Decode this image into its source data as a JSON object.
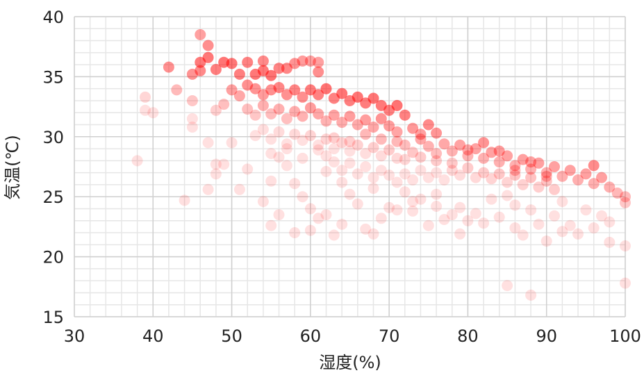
{
  "chart_data": {
    "type": "scatter",
    "xlabel": "湿度(%)",
    "ylabel": "気温(℃)",
    "xlim": [
      30,
      100
    ],
    "ylim": [
      15,
      40
    ],
    "x_ticks": [
      30,
      40,
      50,
      60,
      70,
      80,
      90,
      100
    ],
    "y_ticks": [
      15,
      20,
      25,
      30,
      35,
      40
    ],
    "grid": true,
    "legend": "none",
    "series_color": "#ff0000",
    "points": [
      [
        46,
        38.5
      ],
      [
        47,
        37.6
      ],
      [
        47,
        36.6
      ],
      [
        46,
        36.2
      ],
      [
        46,
        35.5
      ],
      [
        48,
        35.6
      ],
      [
        49,
        36.2
      ],
      [
        50,
        36.1
      ],
      [
        42,
        35.8
      ],
      [
        45,
        35.2
      ],
      [
        43,
        33.9
      ],
      [
        39,
        33.3
      ],
      [
        39,
        32.2
      ],
      [
        40,
        32.0
      ],
      [
        45,
        33.0
      ],
      [
        48,
        32.2
      ],
      [
        49,
        32.7
      ],
      [
        45,
        31.5
      ],
      [
        48,
        27.7
      ],
      [
        48,
        26.9
      ],
      [
        49,
        27.7
      ],
      [
        51,
        35.2
      ],
      [
        52,
        36.2
      ],
      [
        53,
        35.2
      ],
      [
        54,
        36.3
      ],
      [
        54,
        35.5
      ],
      [
        55,
        35.1
      ],
      [
        56,
        35.7
      ],
      [
        57,
        35.7
      ],
      [
        58,
        36.1
      ],
      [
        59,
        36.3
      ],
      [
        60,
        36.3
      ],
      [
        61,
        36.2
      ],
      [
        61,
        35.4
      ],
      [
        50,
        33.9
      ],
      [
        51,
        33.4
      ],
      [
        52,
        34.3
      ],
      [
        53,
        34.0
      ],
      [
        54,
        33.5
      ],
      [
        55,
        33.9
      ],
      [
        56,
        34.1
      ],
      [
        57,
        33.5
      ],
      [
        58,
        33.9
      ],
      [
        59,
        33.3
      ],
      [
        60,
        33.9
      ],
      [
        61,
        33.5
      ],
      [
        62,
        34.0
      ],
      [
        63,
        33.2
      ],
      [
        64,
        33.6
      ],
      [
        65,
        33.0
      ],
      [
        66,
        33.3
      ],
      [
        67,
        32.8
      ],
      [
        68,
        33.2
      ],
      [
        69,
        32.6
      ],
      [
        70,
        32.2
      ],
      [
        71,
        32.6
      ],
      [
        52,
        32.3
      ],
      [
        53,
        31.8
      ],
      [
        54,
        32.6
      ],
      [
        55,
        31.9
      ],
      [
        56,
        32.3
      ],
      [
        57,
        31.5
      ],
      [
        58,
        32.1
      ],
      [
        59,
        31.7
      ],
      [
        60,
        32.4
      ],
      [
        61,
        31.9
      ],
      [
        62,
        31.3
      ],
      [
        63,
        31.8
      ],
      [
        64,
        31.2
      ],
      [
        65,
        31.7
      ],
      [
        66,
        31.0
      ],
      [
        67,
        31.4
      ],
      [
        68,
        30.8
      ],
      [
        69,
        31.5
      ],
      [
        70,
        30.9
      ],
      [
        71,
        30.4
      ],
      [
        72,
        31.8
      ],
      [
        73,
        30.7
      ],
      [
        74,
        30.2
      ],
      [
        75,
        31.0
      ],
      [
        76,
        30.3
      ],
      [
        54,
        30.6
      ],
      [
        55,
        29.8
      ],
      [
        56,
        30.4
      ],
      [
        57,
        29.4
      ],
      [
        58,
        30.2
      ],
      [
        59,
        29.7
      ],
      [
        60,
        30.1
      ],
      [
        61,
        29.3
      ],
      [
        62,
        29.8
      ],
      [
        63,
        29.0
      ],
      [
        64,
        29.5
      ],
      [
        65,
        28.8
      ],
      [
        66,
        29.3
      ],
      [
        67,
        28.6
      ],
      [
        68,
        29.1
      ],
      [
        69,
        28.4
      ],
      [
        70,
        28.9
      ],
      [
        71,
        28.2
      ],
      [
        72,
        29.3
      ],
      [
        73,
        28.7
      ],
      [
        74,
        29.8
      ],
      [
        75,
        29.2
      ],
      [
        76,
        28.6
      ],
      [
        77,
        29.4
      ],
      [
        78,
        28.8
      ],
      [
        79,
        29.3
      ],
      [
        80,
        28.4
      ],
      [
        81,
        29.0
      ],
      [
        82,
        28.2
      ],
      [
        83,
        28.7
      ],
      [
        84,
        27.9
      ],
      [
        85,
        28.4
      ],
      [
        86,
        27.6
      ],
      [
        87,
        28.1
      ],
      [
        88,
        27.3
      ],
      [
        89,
        27.8
      ],
      [
        90,
        27.0
      ],
      [
        91,
        27.5
      ],
      [
        92,
        26.7
      ],
      [
        93,
        27.2
      ],
      [
        94,
        26.4
      ],
      [
        95,
        26.9
      ],
      [
        96,
        27.6
      ],
      [
        96,
        26.1
      ],
      [
        97,
        26.6
      ],
      [
        98,
        25.8
      ],
      [
        99,
        25.3
      ],
      [
        100,
        25.0
      ],
      [
        100,
        24.5
      ],
      [
        62,
        28.4
      ],
      [
        63,
        27.9
      ],
      [
        64,
        27.2
      ],
      [
        65,
        27.8
      ],
      [
        66,
        26.9
      ],
      [
        67,
        27.5
      ],
      [
        68,
        26.6
      ],
      [
        69,
        27.2
      ],
      [
        70,
        26.8
      ],
      [
        71,
        26.2
      ],
      [
        72,
        26.9
      ],
      [
        73,
        26.4
      ],
      [
        74,
        27.2
      ],
      [
        75,
        26.6
      ],
      [
        76,
        27.0
      ],
      [
        77,
        26.4
      ],
      [
        78,
        27.2
      ],
      [
        79,
        26.8
      ],
      [
        80,
        27.4
      ],
      [
        81,
        26.6
      ],
      [
        82,
        27.0
      ],
      [
        83,
        26.5
      ],
      [
        84,
        26.9
      ],
      [
        85,
        26.2
      ],
      [
        86,
        26.8
      ],
      [
        87,
        26.0
      ],
      [
        88,
        26.6
      ],
      [
        89,
        25.8
      ],
      [
        90,
        26.3
      ],
      [
        91,
        25.6
      ],
      [
        62,
        27.1
      ],
      [
        55,
        26.3
      ],
      [
        64,
        26.2
      ],
      [
        73,
        24.6
      ],
      [
        73,
        23.8
      ],
      [
        76,
        24.2
      ],
      [
        78,
        23.5
      ],
      [
        79,
        24.1
      ],
      [
        80,
        23.0
      ],
      [
        79,
        21.9
      ],
      [
        75,
        22.6
      ],
      [
        71,
        23.9
      ],
      [
        74,
        24.8
      ],
      [
        76,
        25.2
      ],
      [
        83,
        24.8
      ],
      [
        86,
        24.3
      ],
      [
        88,
        23.9
      ],
      [
        85,
        25.1
      ],
      [
        92,
        24.6
      ],
      [
        95,
        23.9
      ],
      [
        97,
        23.4
      ],
      [
        98,
        22.9
      ],
      [
        98,
        21.2
      ],
      [
        100,
        20.9
      ],
      [
        100,
        17.8
      ],
      [
        88,
        16.8
      ],
      [
        85,
        17.6
      ],
      [
        92,
        22.1
      ],
      [
        90,
        21.3
      ],
      [
        87,
        21.8
      ],
      [
        60,
        22.2
      ],
      [
        58,
        22.0
      ],
      [
        63,
        21.8
      ],
      [
        62,
        23.5
      ],
      [
        64,
        22.7
      ],
      [
        66,
        24.4
      ],
      [
        67,
        22.3
      ],
      [
        68,
        21.9
      ],
      [
        69,
        23.2
      ],
      [
        65,
        25.2
      ],
      [
        38,
        28.0
      ],
      [
        44,
        24.7
      ],
      [
        47,
        25.6
      ],
      [
        51,
        25.6
      ],
      [
        52,
        27.3
      ],
      [
        50,
        29.5
      ],
      [
        47,
        29.5
      ],
      [
        45,
        30.8
      ],
      [
        56,
        28.3
      ],
      [
        57,
        27.6
      ],
      [
        58,
        26.1
      ],
      [
        59,
        25.0
      ],
      [
        54,
        24.6
      ],
      [
        56,
        23.5
      ],
      [
        55,
        22.6
      ],
      [
        60,
        24.0
      ],
      [
        61,
        23.2
      ],
      [
        70,
        24.1
      ],
      [
        72,
        25.4
      ],
      [
        68,
        25.7
      ],
      [
        77,
        23.1
      ],
      [
        81,
        23.6
      ],
      [
        82,
        22.8
      ],
      [
        84,
        23.3
      ],
      [
        86,
        22.4
      ],
      [
        89,
        22.7
      ],
      [
        91,
        23.4
      ],
      [
        93,
        22.6
      ],
      [
        94,
        21.9
      ],
      [
        96,
        22.4
      ],
      [
        53,
        30.1
      ],
      [
        55,
        28.6
      ],
      [
        57,
        29.0
      ],
      [
        59,
        28.2
      ],
      [
        61,
        28.9
      ],
      [
        63,
        29.9
      ],
      [
        65,
        29.6
      ],
      [
        67,
        30.2
      ],
      [
        69,
        29.8
      ],
      [
        71,
        29.6
      ],
      [
        72,
        28.1
      ],
      [
        74,
        28.3
      ],
      [
        76,
        28.0
      ],
      [
        78,
        27.8
      ],
      [
        80,
        28.9
      ],
      [
        82,
        29.5
      ],
      [
        84,
        28.8
      ],
      [
        86,
        27.2
      ],
      [
        88,
        27.9
      ],
      [
        90,
        26.7
      ]
    ]
  }
}
